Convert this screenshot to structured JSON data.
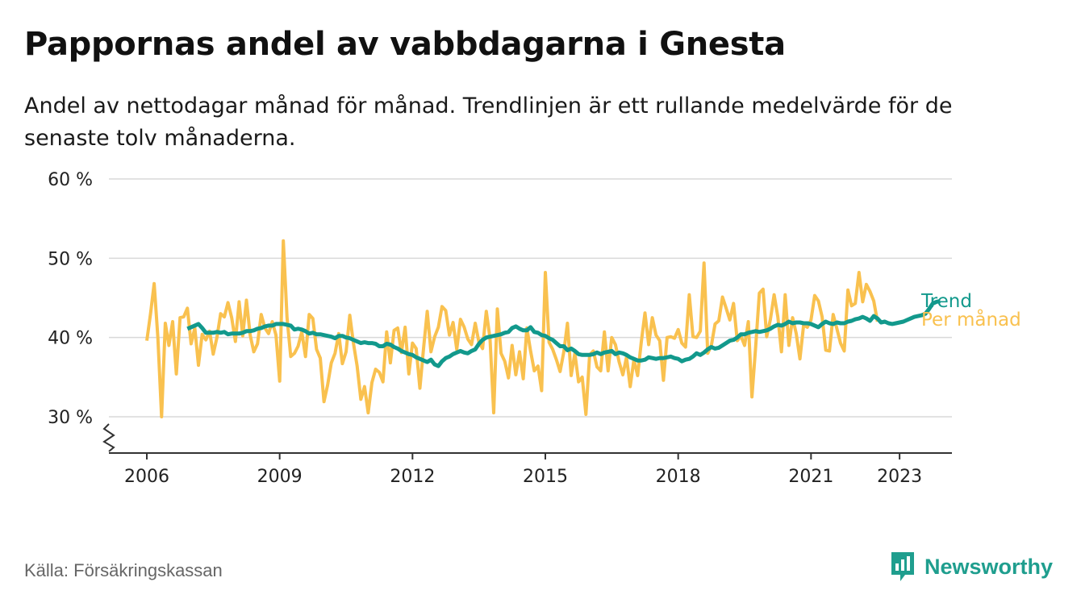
{
  "title": "Pappornas andel av vabbdagarna i Gnesta",
  "subtitle": "Andel av nettodagar månad för månad. Trendlinjen är ett rullande medelvärde för de senaste tolv månaderna.",
  "source": "Källa: Försäkringskassan",
  "brand": "Newsworthy",
  "colors": {
    "trend": "#12998c",
    "monthly": "#f9c14f",
    "grid": "#d9d9d9",
    "axis": "#333333",
    "brand": "#1f9e8e"
  },
  "chart_data": {
    "type": "line",
    "xlabel": "",
    "ylabel": "",
    "ylim": [
      30,
      60
    ],
    "yticks": [
      30,
      40,
      50,
      60
    ],
    "ytick_labels": [
      "30 %",
      "40 %",
      "50 %",
      "60 %"
    ],
    "xlim": [
      2006,
      2024
    ],
    "xticks": [
      2006,
      2009,
      2012,
      2015,
      2018,
      2021,
      2023
    ],
    "xtick_labels": [
      "2006",
      "2009",
      "2012",
      "2015",
      "2018",
      "2021",
      "2023"
    ],
    "axis_break": true,
    "grid": true,
    "legend": "direct labels at line ends",
    "series": [
      {
        "name": "Per månad",
        "x_start": "2006-01",
        "step": "month",
        "values": [
          39.6,
          43.0,
          46.8,
          40.0,
          30.0,
          41.8,
          39.0,
          42.0,
          35.4,
          42.5,
          42.6,
          43.7,
          39.2,
          41.2,
          36.5,
          40.4,
          39.7,
          40.8,
          37.9,
          40.0,
          43.0,
          42.6,
          44.4,
          42.5,
          39.5,
          44.5,
          40.2,
          44.7,
          40.3,
          38.2,
          39.2,
          42.9,
          41.2,
          40.5,
          42.0,
          40.3,
          34.5,
          52.2,
          42.5,
          37.6,
          38.0,
          38.9,
          40.7,
          37.6,
          42.9,
          42.4,
          38.5,
          37.4,
          31.9,
          34.0,
          36.8,
          38.0,
          40.5,
          36.7,
          38.2,
          42.8,
          39.3,
          36.4,
          32.2,
          33.8,
          30.5,
          34.3,
          36.0,
          35.6,
          34.4,
          40.7,
          36.8,
          40.9,
          41.2,
          38.1,
          41.3,
          35.4,
          39.3,
          38.6,
          33.6,
          38.7,
          43.3,
          38.2,
          40.1,
          41.3,
          43.9,
          43.4,
          40.3,
          41.9,
          38.5,
          42.3,
          41.3,
          39.8,
          39.1,
          41.8,
          39.4,
          38.6,
          43.3,
          39.9,
          30.5,
          43.6,
          38.0,
          37.0,
          34.9,
          39.0,
          35.3,
          38.2,
          34.8,
          41.2,
          38.3,
          35.8,
          36.4,
          33.3,
          48.2,
          39.4,
          38.5,
          37.2,
          35.7,
          38.2,
          41.8,
          35.2,
          38.0,
          34.4,
          35.0,
          30.3,
          37.8,
          38.3,
          36.3,
          35.8,
          40.7,
          35.8,
          40.0,
          39.1,
          36.9,
          35.3,
          37.5,
          33.8,
          37.2,
          35.2,
          39.4,
          43.1,
          39.1,
          42.5,
          40.3,
          39.6,
          34.6,
          40.0,
          40.1,
          39.9,
          41.0,
          39.3,
          38.8,
          45.4,
          40.1,
          40.0,
          40.8,
          49.4,
          38.0,
          39.0,
          41.7,
          42.1,
          45.1,
          43.7,
          42.2,
          44.3,
          39.6,
          40.2,
          39.0,
          42.0,
          32.5,
          38.8,
          45.6,
          46.1,
          40.1,
          42.3,
          45.4,
          42.6,
          38.2,
          45.4,
          39.0,
          42.5,
          40.5,
          37.3,
          41.6,
          41.3,
          42.2,
          45.3,
          44.6,
          42.6,
          38.4,
          38.3,
          42.9,
          41.1,
          39.3,
          38.3,
          46.0,
          44.0,
          44.3,
          48.2,
          44.5,
          46.7,
          45.8,
          44.6,
          42.0
        ]
      },
      {
        "name": "Trend",
        "x_start": "2006-12",
        "step": "month",
        "values": [
          41.1,
          41.3,
          41.5,
          41.7,
          41.2,
          40.6,
          40.6,
          40.6,
          40.7,
          40.6,
          40.7,
          40.4,
          40.5,
          40.5,
          40.5,
          40.6,
          40.8,
          40.8,
          40.9,
          41.1,
          41.2,
          41.4,
          41.5,
          41.5,
          41.7,
          41.7,
          41.7,
          41.6,
          41.5,
          41.0,
          41.1,
          41.0,
          40.8,
          40.5,
          40.6,
          40.4,
          40.4,
          40.3,
          40.2,
          40.1,
          39.9,
          40.2,
          40.2,
          40.0,
          39.9,
          39.7,
          39.5,
          39.3,
          39.4,
          39.3,
          39.3,
          39.2,
          38.9,
          38.9,
          39.2,
          39.1,
          38.8,
          38.6,
          38.3,
          38.1,
          37.9,
          37.8,
          37.5,
          37.3,
          37.1,
          36.9,
          37.2,
          36.6,
          36.4,
          37.0,
          37.4,
          37.6,
          37.9,
          38.1,
          38.3,
          38.1,
          38.0,
          38.3,
          38.5,
          39.2,
          39.7,
          40.0,
          40.1,
          40.2,
          40.3,
          40.4,
          40.6,
          40.7,
          41.2,
          41.4,
          41.1,
          40.9,
          40.9,
          41.3,
          40.7,
          40.6,
          40.3,
          40.2,
          39.9,
          39.7,
          39.3,
          38.9,
          38.9,
          38.4,
          38.6,
          38.3,
          37.9,
          37.8,
          37.8,
          37.8,
          37.9,
          38.1,
          37.9,
          38.1,
          38.2,
          38.3,
          37.9,
          38.1,
          38.0,
          37.8,
          37.5,
          37.3,
          37.1,
          37.1,
          37.2,
          37.5,
          37.4,
          37.3,
          37.4,
          37.4,
          37.5,
          37.6,
          37.4,
          37.3,
          37.0,
          37.2,
          37.3,
          37.6,
          38.0,
          37.8,
          38.1,
          38.5,
          38.8,
          38.6,
          38.7,
          39.0,
          39.3,
          39.6,
          39.7,
          40.0,
          40.4,
          40.4,
          40.6,
          40.7,
          40.8,
          40.7,
          40.8,
          40.9,
          41.1,
          41.4,
          41.6,
          41.5,
          41.7,
          42.0,
          41.8,
          41.9,
          41.9,
          41.8,
          41.8,
          41.7,
          41.5,
          41.3,
          41.7,
          42.0,
          41.8,
          41.7,
          41.9,
          41.8,
          41.8,
          42.0,
          42.1,
          42.3,
          42.4,
          42.6,
          42.4,
          42.1,
          42.7,
          42.4,
          41.9,
          42.0,
          41.8,
          41.7,
          41.8,
          41.9,
          42.0,
          42.2,
          42.4,
          42.6,
          42.7,
          42.8,
          43.0,
          43.6,
          44.3,
          44.5,
          44.6
        ]
      }
    ],
    "labels": {
      "trend": "Trend",
      "monthly": "Per månad"
    }
  }
}
